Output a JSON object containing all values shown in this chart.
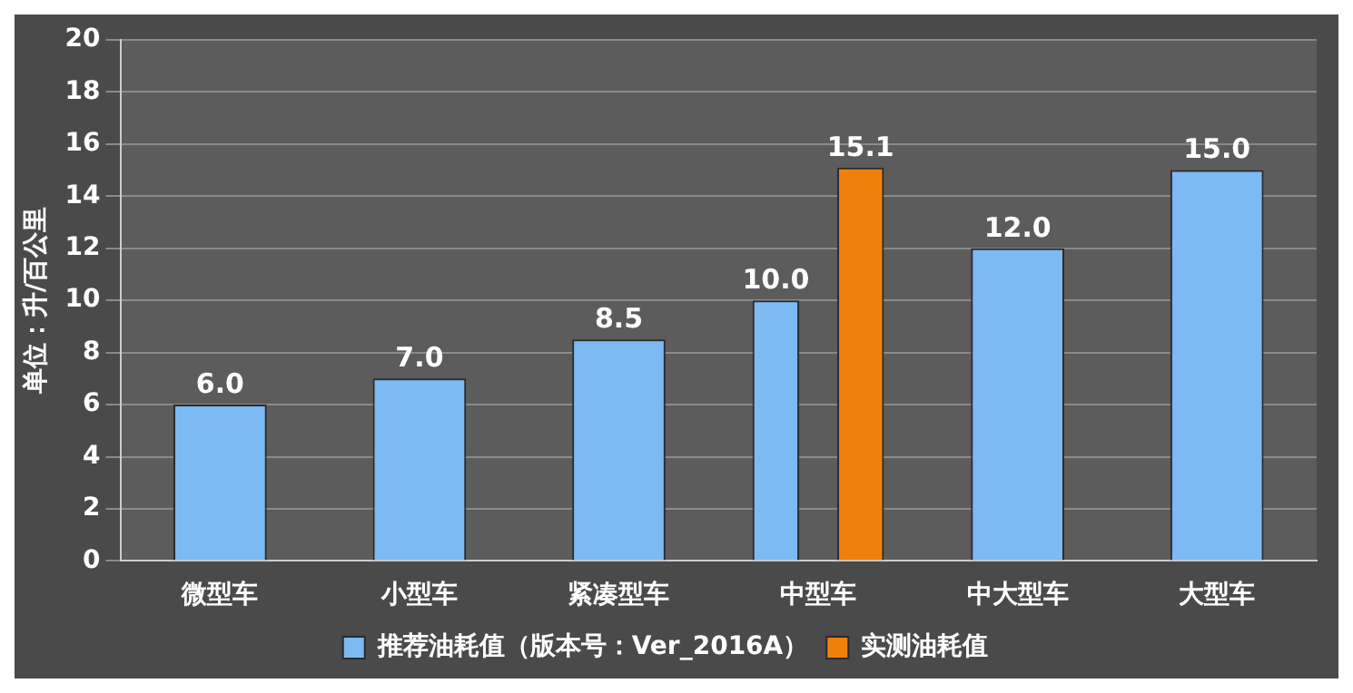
{
  "chart_data": {
    "type": "bar",
    "categories": [
      "微型车",
      "小型车",
      "紧凑型车",
      "中型车",
      "中大型车",
      "大型车"
    ],
    "series": [
      {
        "name": "推荐油耗值（版本号：Ver_2016A）",
        "color": "#7db9f2",
        "values": [
          6.0,
          7.0,
          8.5,
          10.0,
          12.0,
          15.0
        ],
        "value_labels": [
          "6.0",
          "7.0",
          "8.5",
          "10.0",
          "12.0",
          "15.0"
        ]
      },
      {
        "name": "实测油耗值",
        "color": "#f0800c",
        "values": [
          null,
          null,
          null,
          15.1,
          null,
          null
        ],
        "value_labels": [
          null,
          null,
          null,
          "15.1",
          null,
          null
        ]
      }
    ],
    "ylabel": "单位：升/百公里",
    "ylim": [
      0,
      20
    ],
    "yticks": [
      0,
      2,
      4,
      6,
      8,
      10,
      12,
      14,
      16,
      18,
      20
    ],
    "grid": "y",
    "legend": "bottom"
  }
}
